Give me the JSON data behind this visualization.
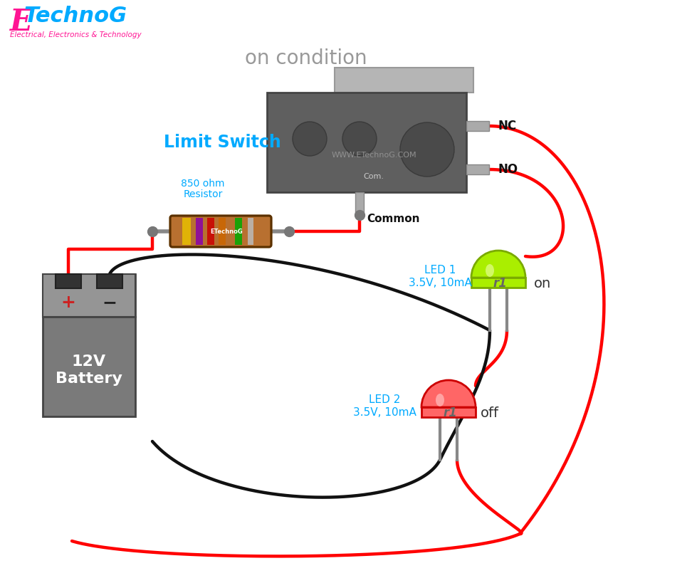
{
  "bg_color": "#ffffff",
  "title": "on condition",
  "title_color": "#999999",
  "title_fontsize": 20,
  "logo_e_color": "#ff1493",
  "logo_technog_color": "#00aaff",
  "logo_subtitle_color": "#ff1493",
  "switch_body_color": "#5f5f5f",
  "switch_border_color": "#444444",
  "terminal_color": "#aaaaaa",
  "watermark": "WWW.ETechnoG.COM",
  "com_text": "Com.",
  "nc_label": "NC",
  "no_label": "NO",
  "common_label": "Common",
  "limit_switch_label": "Limit Switch",
  "limit_switch_color": "#00aaff",
  "resistor_label1": "Resistor",
  "resistor_label2": "850 ohm",
  "resistor_color_label": "#00aaff",
  "battery_label": "12V\nBattery",
  "led1_label1": "LED 1",
  "led1_label2": "3.5V, 10mA",
  "led1_body_color": "#aaee00",
  "led1_state": "on",
  "led2_label1": "LED 2",
  "led2_label2": "3.5V, 10mA",
  "led2_body_color": "#ff6666",
  "led2_state": "off",
  "wire_red": "#ff0000",
  "wire_black": "#111111",
  "wire_lw": 3.2,
  "led_inner_text": "r1",
  "resistor_etechnog": "ETechnoG"
}
